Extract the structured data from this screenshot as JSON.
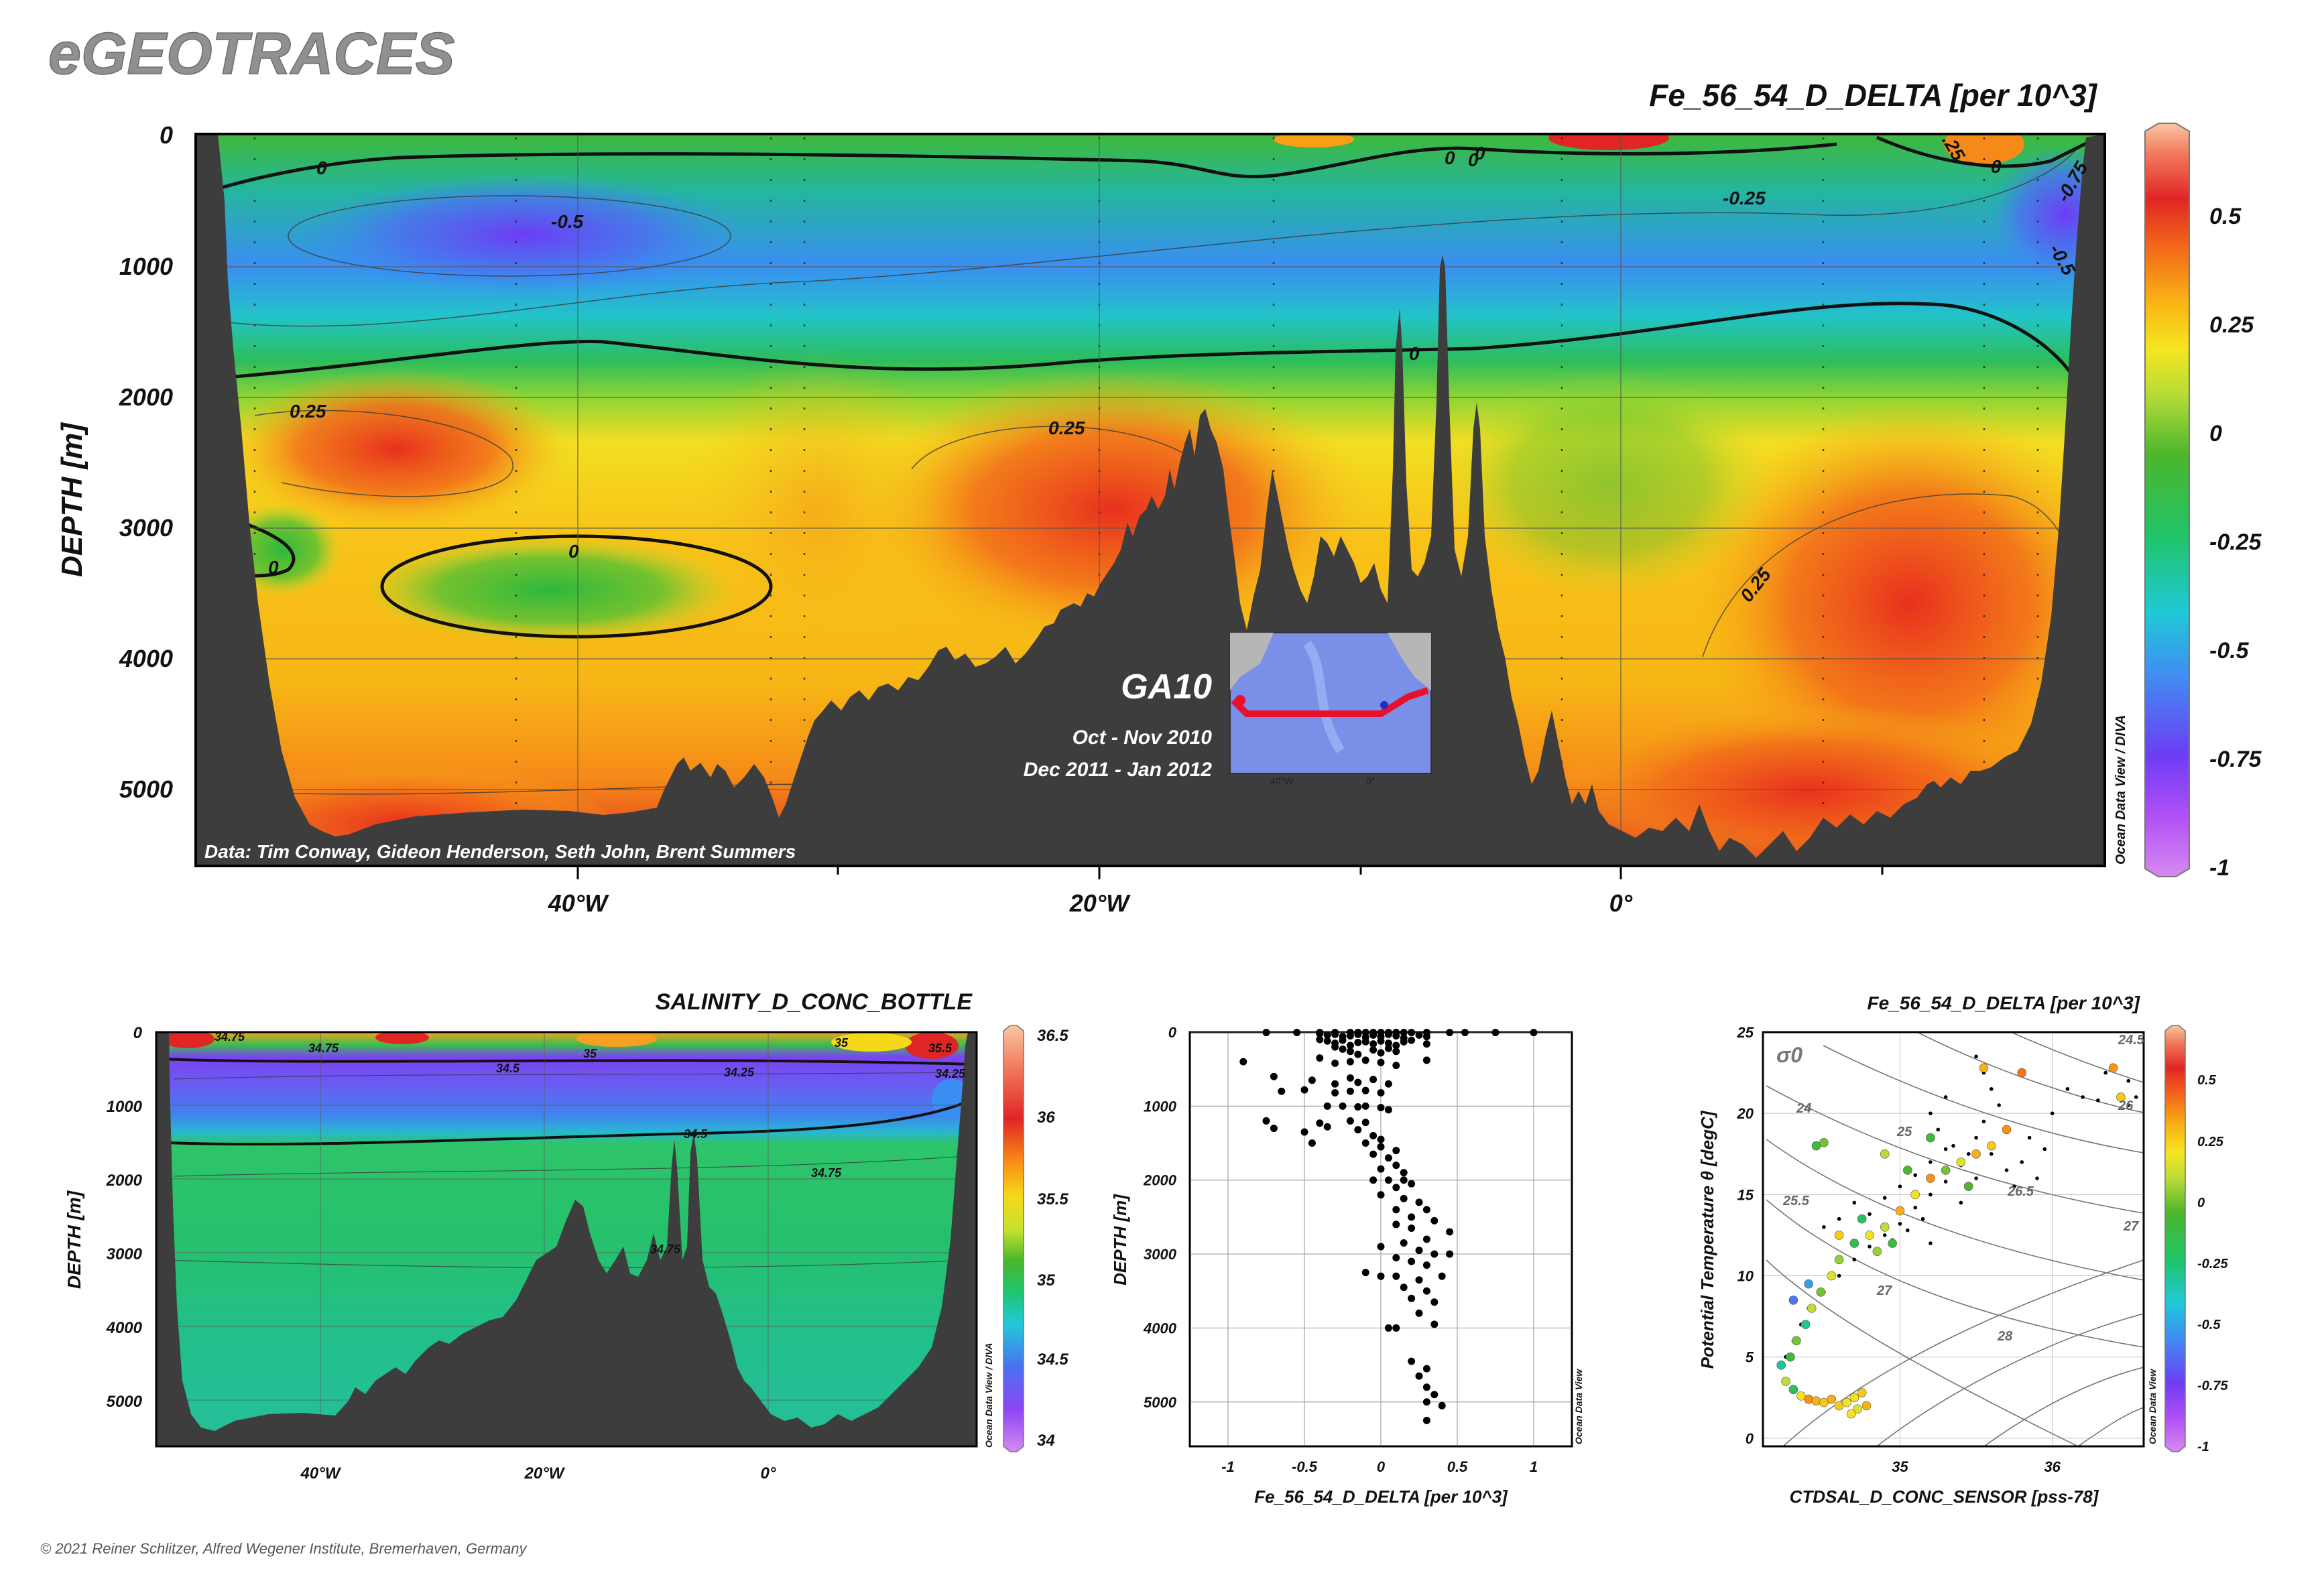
{
  "header": {
    "logo": "eGEOTRACES",
    "copyright": "© 2021 Reiner Schlitzer, Alfred Wegener Institute, Bremerhaven, Germany"
  },
  "main_section": {
    "title": "Fe_56_54_D_DELTA [per 10^3]",
    "ylabel": "DEPTH [m]",
    "yticks": [
      "0",
      "1000",
      "2000",
      "3000",
      "4000",
      "5000"
    ],
    "xticks": [
      "40°W",
      "20°W",
      "0°"
    ],
    "credit": "Data: Tim Conway, Gideon Henderson, Seth John, Brent Summers",
    "cruise": "GA10",
    "dates": [
      "Oct - Nov 2010",
      "Dec 2011 - Jan 2012"
    ],
    "map_ticks": [
      "40°W",
      "0°"
    ],
    "odv_label": "Ocean Data View / DIVA",
    "colorbar": {
      "ticks": [
        "0.5",
        "0.25",
        "0",
        "-0.25",
        "-0.5",
        "-0.75",
        "-1"
      ],
      "min": -1,
      "max": 0.7
    },
    "contour_labels": [
      "0",
      "-0.5",
      "0",
      "-0.25",
      "0.25",
      "0",
      "0.25",
      "0.25",
      "0",
      "0",
      "0",
      "-0.5",
      "-0.75",
      ".25",
      "0",
      "0"
    ]
  },
  "salinity_section": {
    "title": "SALINITY_D_CONC_BOTTLE",
    "ylabel": "DEPTH [m]",
    "yticks": [
      "0",
      "1000",
      "2000",
      "3000",
      "4000",
      "5000"
    ],
    "xticks": [
      "40°W",
      "20°W",
      "0°"
    ],
    "odv_label": "Ocean Data View / DIVA",
    "colorbar": {
      "ticks": [
        "36.5",
        "36",
        "35.5",
        "35",
        "34.5",
        "34"
      ],
      "min": 34,
      "max": 36.5
    },
    "contour_labels": [
      "34.75",
      "34.75",
      "35",
      "34.5",
      "34.25",
      "34.5",
      "34.75",
      "34.75",
      "35.5",
      "34.25",
      "35"
    ]
  },
  "profile_plot": {
    "xlabel": "Fe_56_54_D_DELTA [per 10^3]",
    "ylabel": "DEPTH [m]",
    "xticks": [
      "-1",
      "-0.5",
      "0",
      "0.5",
      "1"
    ],
    "yticks": [
      "0",
      "1000",
      "2000",
      "3000",
      "4000",
      "5000"
    ],
    "odv_label": "Ocean Data View",
    "chart_data": {
      "type": "scatter",
      "xlim": [
        -1.25,
        1.25
      ],
      "ylim": [
        0,
        5600
      ],
      "points": [
        [
          -0.75,
          5
        ],
        [
          -0.55,
          5
        ],
        [
          -0.4,
          5
        ],
        [
          -0.3,
          5
        ],
        [
          -0.2,
          5
        ],
        [
          -0.15,
          5
        ],
        [
          -0.1,
          5
        ],
        [
          -0.05,
          5
        ],
        [
          0.0,
          5
        ],
        [
          0.05,
          5
        ],
        [
          0.1,
          5
        ],
        [
          0.15,
          5
        ],
        [
          0.2,
          5
        ],
        [
          0.3,
          5
        ],
        [
          0.45,
          5
        ],
        [
          0.55,
          5
        ],
        [
          0.75,
          5
        ],
        [
          1.0,
          5
        ],
        [
          -0.4,
          20
        ],
        [
          -0.35,
          40
        ],
        [
          -0.3,
          30
        ],
        [
          -0.25,
          60
        ],
        [
          -0.2,
          50
        ],
        [
          -0.15,
          30
        ],
        [
          -0.1,
          70
        ],
        [
          -0.05,
          40
        ],
        [
          0.0,
          60
        ],
        [
          0.05,
          30
        ],
        [
          0.1,
          50
        ],
        [
          0.15,
          80
        ],
        [
          0.25,
          40
        ],
        [
          0.3,
          60
        ],
        [
          -0.4,
          100
        ],
        [
          -0.35,
          120
        ],
        [
          -0.3,
          150
        ],
        [
          -0.25,
          110
        ],
        [
          -0.2,
          180
        ],
        [
          -0.15,
          140
        ],
        [
          -0.1,
          130
        ],
        [
          -0.05,
          160
        ],
        [
          0.0,
          120
        ],
        [
          0.05,
          150
        ],
        [
          0.1,
          180
        ],
        [
          0.15,
          130
        ],
        [
          0.2,
          110
        ],
        [
          0.3,
          160
        ],
        [
          -0.3,
          200
        ],
        [
          -0.25,
          230
        ],
        [
          -0.2,
          260
        ],
        [
          -0.15,
          300
        ],
        [
          -0.05,
          240
        ],
        [
          0.0,
          280
        ],
        [
          0.05,
          220
        ],
        [
          0.1,
          260
        ],
        [
          -0.9,
          400
        ],
        [
          -0.4,
          350
        ],
        [
          -0.3,
          420
        ],
        [
          -0.2,
          400
        ],
        [
          -0.1,
          380
        ],
        [
          0.0,
          410
        ],
        [
          0.1,
          450
        ],
        [
          0.3,
          380
        ],
        [
          -0.7,
          600
        ],
        [
          -0.45,
          650
        ],
        [
          -0.3,
          700
        ],
        [
          -0.2,
          620
        ],
        [
          -0.15,
          680
        ],
        [
          -0.05,
          640
        ],
        [
          0.05,
          700
        ],
        [
          -0.65,
          800
        ],
        [
          -0.5,
          780
        ],
        [
          -0.3,
          820
        ],
        [
          -0.2,
          800
        ],
        [
          -0.1,
          790
        ],
        [
          0.0,
          820
        ],
        [
          -0.35,
          1000
        ],
        [
          -0.25,
          1000
        ],
        [
          -0.15,
          1010
        ],
        [
          -0.1,
          1000
        ],
        [
          0.0,
          1020
        ],
        [
          0.05,
          1050
        ],
        [
          -0.75,
          1200
        ],
        [
          -0.4,
          1230
        ],
        [
          -0.2,
          1200
        ],
        [
          -0.1,
          1220
        ],
        [
          -0.7,
          1300
        ],
        [
          -0.5,
          1350
        ],
        [
          -0.35,
          1280
        ],
        [
          -0.15,
          1320
        ],
        [
          -0.05,
          1400
        ],
        [
          0.0,
          1450
        ],
        [
          -0.45,
          1500
        ],
        [
          -0.1,
          1500
        ],
        [
          0.0,
          1550
        ],
        [
          0.1,
          1600
        ],
        [
          -0.05,
          1650
        ],
        [
          0.05,
          1700
        ],
        [
          0.1,
          1800
        ],
        [
          0.0,
          1850
        ],
        [
          0.15,
          1900
        ],
        [
          -0.05,
          2000
        ],
        [
          0.05,
          2000
        ],
        [
          0.15,
          2000
        ],
        [
          0.2,
          2050
        ],
        [
          0.1,
          2100
        ],
        [
          0.0,
          2200
        ],
        [
          0.15,
          2250
        ],
        [
          0.25,
          2300
        ],
        [
          0.1,
          2400
        ],
        [
          0.3,
          2400
        ],
        [
          0.2,
          2500
        ],
        [
          0.35,
          2550
        ],
        [
          0.1,
          2600
        ],
        [
          0.2,
          2650
        ],
        [
          0.45,
          2700
        ],
        [
          0.3,
          2800
        ],
        [
          0.15,
          2850
        ],
        [
          0.0,
          2900
        ],
        [
          0.25,
          2950
        ],
        [
          0.35,
          3000
        ],
        [
          0.45,
          3000
        ],
        [
          0.1,
          3050
        ],
        [
          0.2,
          3100
        ],
        [
          0.3,
          3150
        ],
        [
          -0.1,
          3250
        ],
        [
          0.0,
          3300
        ],
        [
          0.1,
          3300
        ],
        [
          0.25,
          3350
        ],
        [
          0.4,
          3300
        ],
        [
          0.15,
          3450
        ],
        [
          0.3,
          3500
        ],
        [
          0.2,
          3600
        ],
        [
          0.35,
          3650
        ],
        [
          0.25,
          3800
        ],
        [
          0.35,
          3950
        ],
        [
          0.05,
          4000
        ],
        [
          0.1,
          4000
        ],
        [
          0.2,
          4450
        ],
        [
          0.3,
          4550
        ],
        [
          0.25,
          4650
        ],
        [
          0.3,
          4800
        ],
        [
          0.35,
          4900
        ],
        [
          0.3,
          5000
        ],
        [
          0.4,
          5050
        ],
        [
          0.3,
          5250
        ]
      ]
    }
  },
  "ts_plot": {
    "title": "Fe_56_54_D_DELTA [per 10^3]",
    "xlabel": "CTDSAL_D_CONC_SENSOR [pss-78]",
    "ylabel": "Potential Temperature θ [degC]",
    "xticks": [
      "35",
      "36"
    ],
    "yticks": [
      "0",
      "5",
      "10",
      "15",
      "20",
      "25"
    ],
    "sigma_label": "σ0",
    "isopycnal_labels": [
      "24",
      "24.5",
      "25",
      "25.5",
      "26",
      "26.5",
      "27",
      "27",
      "28"
    ],
    "odv_label": "Ocean Data View",
    "colorbar": {
      "ticks": [
        "0.5",
        "0.25",
        "0",
        "-0.25",
        "-0.5",
        "-0.75",
        "-1"
      ],
      "min": -1,
      "max": 0.7
    },
    "chart_data": {
      "type": "scatter",
      "xlim": [
        34.1,
        36.6
      ],
      "ylim": [
        -0.5,
        25
      ],
      "colored_points": [
        [
          34.22,
          4.5,
          -0.3
        ],
        [
          34.25,
          3.5,
          0.1
        ],
        [
          34.3,
          3.0,
          -0.2
        ],
        [
          34.35,
          2.6,
          0.2
        ],
        [
          34.4,
          2.4,
          0.35
        ],
        [
          34.45,
          2.3,
          0.3
        ],
        [
          34.5,
          2.2,
          0.25
        ],
        [
          34.55,
          2.4,
          0.3
        ],
        [
          34.6,
          2.0,
          0.25
        ],
        [
          34.65,
          2.2,
          0.2
        ],
        [
          34.7,
          2.5,
          0.2
        ],
        [
          34.75,
          2.8,
          0.25
        ],
        [
          34.72,
          1.8,
          0.15
        ],
        [
          34.68,
          1.5,
          0.2
        ],
        [
          34.78,
          2.0,
          0.3
        ],
        [
          34.28,
          5.0,
          -0.1
        ],
        [
          34.32,
          6.0,
          0.0
        ],
        [
          34.38,
          7.0,
          -0.3
        ],
        [
          34.42,
          8.0,
          0.1
        ],
        [
          34.48,
          9.0,
          0.0
        ],
        [
          34.55,
          10.0,
          0.15
        ],
        [
          34.6,
          11.0,
          0.05
        ],
        [
          34.7,
          12.0,
          -0.15
        ],
        [
          34.8,
          12.5,
          0.2
        ],
        [
          34.9,
          13.0,
          0.1
        ],
        [
          35.0,
          14.0,
          0.3
        ],
        [
          35.1,
          15.0,
          0.2
        ],
        [
          35.2,
          16.0,
          0.35
        ],
        [
          35.3,
          16.5,
          0.0
        ],
        [
          35.4,
          17.0,
          0.15
        ],
        [
          35.5,
          17.5,
          0.3
        ],
        [
          35.6,
          18.0,
          0.25
        ],
        [
          35.2,
          18.5,
          -0.1
        ],
        [
          34.9,
          17.5,
          0.1
        ],
        [
          35.05,
          16.5,
          -0.05
        ],
        [
          34.3,
          8.5,
          -0.6
        ],
        [
          34.4,
          9.5,
          -0.5
        ],
        [
          34.6,
          12.5,
          0.25
        ],
        [
          34.75,
          13.5,
          -0.2
        ],
        [
          34.45,
          18.0,
          -0.1
        ],
        [
          34.5,
          18.2,
          0.0
        ],
        [
          35.7,
          19.0,
          0.35
        ],
        [
          35.45,
          15.5,
          -0.05
        ],
        [
          35.8,
          22.5,
          0.4
        ],
        [
          35.55,
          22.8,
          0.3
        ],
        [
          36.4,
          22.8,
          0.35
        ],
        [
          36.45,
          21.0,
          0.25
        ],
        [
          34.85,
          11.5,
          0.05
        ],
        [
          34.95,
          12.0,
          -0.1
        ]
      ],
      "black_points": [
        [
          35.5,
          23.5
        ],
        [
          35.55,
          22.5
        ],
        [
          35.6,
          21.5
        ],
        [
          35.65,
          20.5
        ],
        [
          35.55,
          19.5
        ],
        [
          35.5,
          18.5
        ],
        [
          35.45,
          17.5
        ],
        [
          35.4,
          16.8
        ],
        [
          35.3,
          15.8
        ],
        [
          35.2,
          15.0
        ],
        [
          35.1,
          14.2
        ],
        [
          35.0,
          13.2
        ],
        [
          34.9,
          12.5
        ],
        [
          34.8,
          11.8
        ],
        [
          34.7,
          11.0
        ],
        [
          34.6,
          10.0
        ],
        [
          34.5,
          9.0
        ],
        [
          34.4,
          8.0
        ],
        [
          34.35,
          7.0
        ],
        [
          34.3,
          6.0
        ],
        [
          34.25,
          5.0
        ],
        [
          35.3,
          21.0
        ],
        [
          35.2,
          20.0
        ],
        [
          35.25,
          19.0
        ],
        [
          35.35,
          18.0
        ],
        [
          35.6,
          17.5
        ],
        [
          35.7,
          16.5
        ],
        [
          35.4,
          14.5
        ],
        [
          35.15,
          13.5
        ],
        [
          35.05,
          12.8
        ],
        [
          34.95,
          12.2
        ],
        [
          35.2,
          12.0
        ],
        [
          35.5,
          16.0
        ],
        [
          35.8,
          17.0
        ],
        [
          35.9,
          16.0
        ],
        [
          36.1,
          21.5
        ],
        [
          36.2,
          21.0
        ],
        [
          36.3,
          20.8
        ],
        [
          36.5,
          20.5
        ],
        [
          36.55,
          21.0
        ],
        [
          36.5,
          22.0
        ],
        [
          36.35,
          22.5
        ],
        [
          36.0,
          20.0
        ],
        [
          35.85,
          18.5
        ],
        [
          35.95,
          17.8
        ],
        [
          35.75,
          15.5
        ],
        [
          34.7,
          14.5
        ],
        [
          34.6,
          13.5
        ],
        [
          34.5,
          13.0
        ],
        [
          34.8,
          13.8
        ],
        [
          34.9,
          14.8
        ],
        [
          35.0,
          15.5
        ],
        [
          35.1,
          16.2
        ],
        [
          35.2,
          17.0
        ],
        [
          35.3,
          17.8
        ]
      ]
    }
  }
}
